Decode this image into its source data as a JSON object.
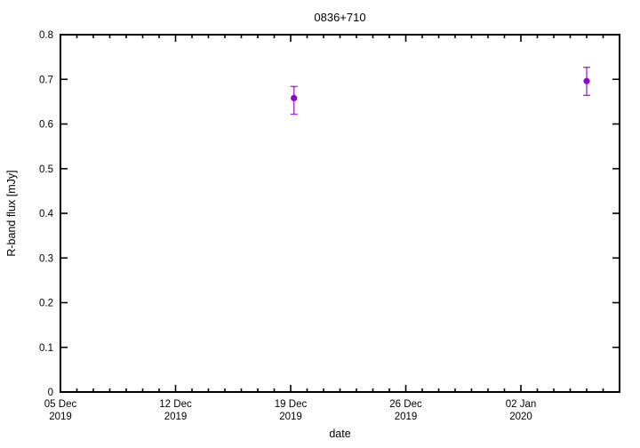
{
  "title": "0836+710",
  "colors": {
    "background": "#ffffff",
    "axis": "#000000",
    "point": "#9400d3"
  },
  "chart_data": {
    "type": "scatter",
    "title": "0836+710",
    "xlabel": "date",
    "ylabel": "R-band flux [mJy]",
    "ylim": [
      0,
      0.8
    ],
    "y_tick_step": 0.1,
    "y_tick_labels": [
      "0",
      "0.1",
      "0.2",
      "0.3",
      "0.4",
      "0.5",
      "0.6",
      "0.7",
      "0.8"
    ],
    "x_start": "05 Dec 2019",
    "x_end": "08 Jan 2020",
    "x_range_days": 34,
    "x_minor_tick_every_days": 1,
    "x_major_ticks": [
      {
        "day": 0,
        "line1": "05 Dec",
        "line2": "2019"
      },
      {
        "day": 7,
        "line1": "12 Dec",
        "line2": "2019"
      },
      {
        "day": 14,
        "line1": "19 Dec",
        "line2": "2019"
      },
      {
        "day": 21,
        "line1": "26 Dec",
        "line2": "2019"
      },
      {
        "day": 28,
        "line1": "02 Jan",
        "line2": "2020"
      }
    ],
    "grid": false,
    "legend": "none",
    "series": [
      {
        "name": "R-band flux",
        "color": "#9400d3",
        "points": [
          {
            "date": "19 Dec 2019",
            "day": 14.2,
            "y": 0.658,
            "y_low": 0.622,
            "y_high": 0.684
          },
          {
            "date": "06 Jan 2020",
            "day": 32.0,
            "y": 0.696,
            "y_low": 0.664,
            "y_high": 0.727
          }
        ]
      }
    ]
  }
}
